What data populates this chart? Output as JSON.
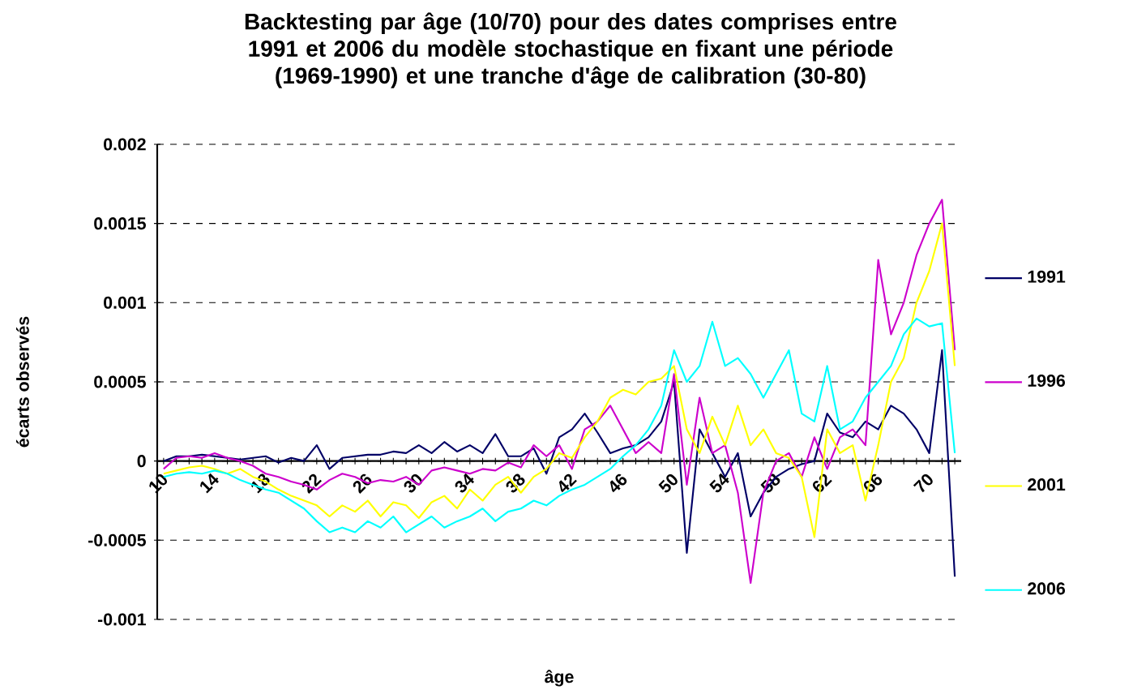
{
  "chart_data": {
    "type": "line",
    "title": "Backtesting par âge (10/70) pour des dates comprises entre 1991 et 2006 du modèle stochastique en fixant une période (1969-1990) et une tranche d'âge de calibration (30-80)",
    "xlabel": "âge",
    "ylabel": "écarts observés",
    "categories": [
      "10",
      null,
      null,
      null,
      "14",
      null,
      null,
      null,
      "18",
      null,
      null,
      null,
      "22",
      null,
      null,
      null,
      "26",
      null,
      null,
      null,
      "30",
      null,
      null,
      null,
      "34",
      null,
      null,
      null,
      "38",
      null,
      null,
      null,
      "42",
      null,
      null,
      null,
      "46",
      null,
      null,
      null,
      "50",
      null,
      null,
      null,
      "54",
      null,
      null,
      null,
      "58",
      null,
      null,
      null,
      "62",
      null,
      null,
      null,
      "66",
      null,
      null,
      null,
      "70",
      null,
      null
    ],
    "series": [
      {
        "name": "1991",
        "color": "#000066",
        "values": [
          0,
          3e-05,
          3e-05,
          4e-05,
          3e-05,
          2e-05,
          1e-05,
          2e-05,
          3e-05,
          -1e-05,
          2e-05,
          0,
          0.0001,
          -5e-05,
          2e-05,
          3e-05,
          4e-05,
          4e-05,
          6e-05,
          5e-05,
          0.0001,
          5e-05,
          0.00012,
          6e-05,
          0.0001,
          5e-05,
          0.00017,
          3e-05,
          3e-05,
          8e-05,
          -8e-05,
          0.00015,
          0.0002,
          0.0003,
          0.00018,
          5e-05,
          8e-05,
          0.0001,
          0.00015,
          0.00025,
          0.0005,
          -0.00058,
          0.0002,
          5e-05,
          -0.0001,
          5e-05,
          -0.00035,
          -0.0002,
          -0.0001,
          -5e-05,
          -2e-05,
          0,
          0.0003,
          0.00018,
          0.00015,
          0.00025,
          0.0002,
          0.00035,
          0.0003,
          0.0002,
          5e-05,
          0.0007,
          -0.00073
        ]
      },
      {
        "name": "1996",
        "color": "#cc00cc",
        "values": [
          -5e-05,
          2e-05,
          3e-05,
          2e-05,
          5e-05,
          2e-05,
          0,
          -3e-05,
          -8e-05,
          -0.0001,
          -0.00013,
          -0.00015,
          -0.00018,
          -0.00012,
          -8e-05,
          -0.0001,
          -0.00014,
          -0.00012,
          -0.00013,
          -0.0001,
          -0.00015,
          -6e-05,
          -4e-05,
          -6e-05,
          -8e-05,
          -5e-05,
          -6e-05,
          -1e-05,
          -4e-05,
          0.0001,
          3e-05,
          0.0001,
          -5e-05,
          0.0002,
          0.00025,
          0.00035,
          0.0002,
          5e-05,
          0.00012,
          5e-05,
          0.00055,
          -0.00015,
          0.0004,
          5e-05,
          0.0001,
          -0.0002,
          -0.00077,
          -0.0002,
          0,
          5e-05,
          -0.0001,
          0.00015,
          -5e-05,
          0.00015,
          0.0002,
          0.0001,
          0.00127,
          0.0008,
          0.001,
          0.0013,
          0.0015,
          0.00165,
          0.0007
        ]
      },
      {
        "name": "2001",
        "color": "#ffff00",
        "values": [
          -8e-05,
          -6e-05,
          -4e-05,
          -3e-05,
          -5e-05,
          -8e-05,
          -5e-05,
          -0.0001,
          -0.00013,
          -0.00018,
          -0.00022,
          -0.00025,
          -0.00028,
          -0.00035,
          -0.00028,
          -0.00032,
          -0.00025,
          -0.00035,
          -0.00026,
          -0.00028,
          -0.00036,
          -0.00026,
          -0.00022,
          -0.0003,
          -0.00018,
          -0.00025,
          -0.00015,
          -0.0001,
          -0.0002,
          -0.0001,
          -5e-05,
          5e-05,
          2e-05,
          0.00015,
          0.00025,
          0.0004,
          0.00045,
          0.00042,
          0.0005,
          0.00052,
          0.0006,
          0.0002,
          5e-05,
          0.00028,
          0.0001,
          0.00035,
          0.0001,
          0.0002,
          5e-05,
          2e-05,
          -0.0001,
          -0.00048,
          0.0002,
          5e-05,
          0.0001,
          -0.00025,
          0.0001,
          0.0005,
          0.00065,
          0.001,
          0.0012,
          0.0015,
          0.0006
        ]
      },
      {
        "name": "2006",
        "color": "#00ffff",
        "values": [
          -0.0001,
          -8e-05,
          -7e-05,
          -8e-05,
          -6e-05,
          -8e-05,
          -0.00012,
          -0.00015,
          -0.00018,
          -0.0002,
          -0.00025,
          -0.0003,
          -0.00038,
          -0.00045,
          -0.00042,
          -0.00045,
          -0.00038,
          -0.00042,
          -0.00035,
          -0.00045,
          -0.0004,
          -0.00035,
          -0.00042,
          -0.00038,
          -0.00035,
          -0.0003,
          -0.00038,
          -0.00032,
          -0.0003,
          -0.00025,
          -0.00028,
          -0.00022,
          -0.00018,
          -0.00015,
          -0.0001,
          -5e-05,
          3e-05,
          0.0001,
          0.0002,
          0.00035,
          0.0007,
          0.0005,
          0.0006,
          0.00088,
          0.0006,
          0.00065,
          0.00055,
          0.0004,
          0.00055,
          0.0007,
          0.0003,
          0.00025,
          0.0006,
          0.0002,
          0.00025,
          0.0004,
          0.0005,
          0.0006,
          0.0008,
          0.0009,
          0.00085,
          0.00087,
          5e-05
        ]
      }
    ],
    "ylim": [
      -0.001,
      0.002
    ],
    "yticks": [
      -0.001,
      -0.0005,
      0,
      0.0005,
      0.001,
      0.0015,
      0.002
    ],
    "grid": "y",
    "legend": "right",
    "marker": "none",
    "line_style": "solid"
  }
}
